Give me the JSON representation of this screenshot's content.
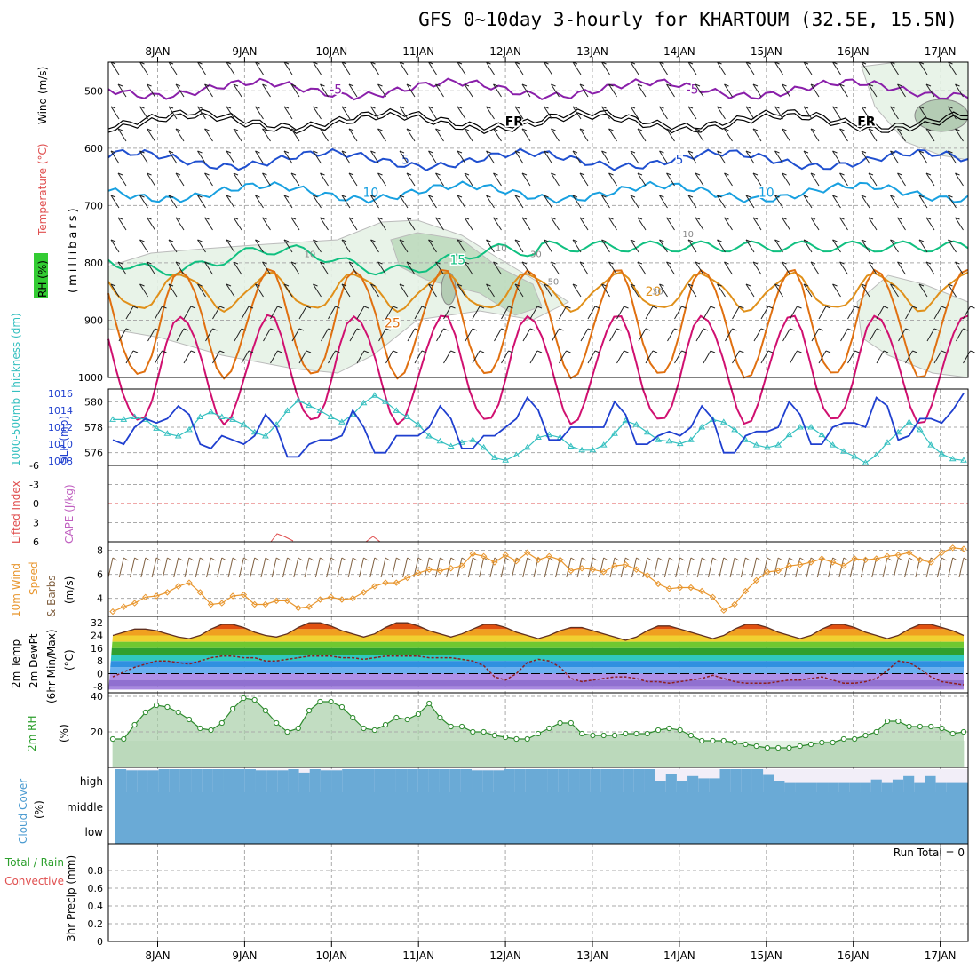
{
  "page": {
    "title": "GFS 0~10day 3-hourly for KHARTOUM (32.5E, 15.5N)"
  },
  "colors": {
    "grid": "#aaaaaa",
    "frame": "#000000",
    "slp": "#1f3fcf",
    "thickness": "#35c0c0",
    "wind_speed": "#e8962e",
    "barb": "#806040",
    "rh_line": "#2e8b2e",
    "rh_fill_dark": "#a8cfa8",
    "rh_fill_light": "#e6f2e6",
    "cloud": "#6aaad6",
    "cloud_clear": "#f2eef8",
    "cape": "#c060c0",
    "lifted_index": "#e02020"
  },
  "x_axis": {
    "top_labels": [
      "8JAN",
      "9JAN",
      "10JAN",
      "11JAN",
      "12JAN",
      "13JAN",
      "14JAN",
      "15JAN",
      "16JAN",
      "17JAN"
    ],
    "bottom_labels": [
      "8JAN",
      "9JAN",
      "10JAN",
      "11JAN",
      "12JAN",
      "13JAN",
      "14JAN",
      "15JAN",
      "16JAN",
      "17JAN"
    ]
  },
  "panels": {
    "upper": {
      "label_rh": "RH (%)",
      "label_temp": "Temperature (°C)",
      "label_wind": "Wind (m/s)",
      "label_mb": "(millibars)",
      "y_ticks": [
        "500",
        "600",
        "700",
        "800",
        "900",
        "1000"
      ],
      "y_values": [
        500,
        600,
        700,
        800,
        900,
        1000
      ],
      "ylim": [
        450,
        1000
      ],
      "isotherms": [
        {
          "value": -5,
          "color": "#8a1faa",
          "labels": [
            {
              "text": "-5",
              "day": 2.05
            },
            {
              "text": "-5",
              "day": 6.15
            }
          ]
        },
        {
          "value": 0,
          "color": "#000000",
          "double": true,
          "labels": [
            {
              "text": "FR",
              "day": 4.1
            },
            {
              "text": "FR",
              "day": 8.15
            }
          ]
        },
        {
          "value": 5,
          "color": "#1f4fcf",
          "labels": [
            {
              "text": "5",
              "day": 2.85
            },
            {
              "text": "5",
              "day": 6.0
            }
          ]
        },
        {
          "value": 10,
          "color": "#18a0e0",
          "labels": [
            {
              "text": "10",
              "day": 2.45
            },
            {
              "text": "10",
              "day": 7.0
            }
          ]
        },
        {
          "value": 15,
          "color": "#10c080",
          "labels": [
            {
              "text": "15",
              "day": 3.45
            }
          ]
        },
        {
          "value": 20,
          "color": "#e0901a",
          "labels": [
            {
              "text": "20",
              "day": 5.7
            }
          ]
        },
        {
          "value": 25,
          "color": "#e07010",
          "labels": [
            {
              "text": "25",
              "day": 2.7
            }
          ]
        },
        {
          "value": 30,
          "color": "#d01070",
          "labels": []
        }
      ],
      "rh_labels": [
        {
          "text": "10",
          "day": 1.75
        },
        {
          "text": "10",
          "day": 3.95
        },
        {
          "text": "10",
          "day": 6.1
        },
        {
          "text": "30",
          "day": 4.35
        },
        {
          "text": "50",
          "day": 4.55
        },
        {
          "text": "30",
          "day": 5.75
        }
      ]
    },
    "slp_thickness": {
      "label_thickness": "1000-500mb Thickness (dm)",
      "label_slp": "SLP (mb)",
      "left_ticks": [
        "580",
        "578",
        "576"
      ],
      "right_ticks": [
        "1016",
        "1014",
        "1012",
        "1010",
        "1008"
      ]
    },
    "li_cape": {
      "label_li": "Lifted Index",
      "label_cape": "CAPE (J/kg)",
      "y_ticks": [
        "-6",
        "-3",
        "0",
        "3",
        "6"
      ]
    },
    "wind10": {
      "label_a": "10m Wind",
      "label_b": "Speed",
      "label_c": "& Barbs",
      "label_unit": "(m/s)",
      "y_ticks": [
        "8",
        "6",
        "4"
      ]
    },
    "temp2m": {
      "label_a": "2m Temp",
      "label_b": "2m DewPt",
      "label_c": "(6hr Min/Max)",
      "label_unit": "(°C)",
      "y_ticks": [
        "32",
        "24",
        "16",
        "8",
        "0",
        "-8"
      ]
    },
    "rh2m": {
      "label_a": "2m RH",
      "label_unit": "(%)",
      "y_ticks": [
        "40",
        "20"
      ]
    },
    "cloud": {
      "label_a": "Cloud Cover",
      "label_unit": "(%)",
      "levels": [
        "high",
        "middle",
        "low"
      ]
    },
    "precip": {
      "label_a": "Total / Rain",
      "label_b": "Convective",
      "label_c": "3hr Precip (mm)",
      "run_total": "Run Total = 0",
      "y_ticks": [
        "0.8",
        "0.6",
        "0.4",
        "0.2",
        "0"
      ],
      "ylim": [
        0,
        1
      ]
    }
  },
  "chart_data": {
    "type": "line",
    "x": [
      "7.5JAN",
      "7.6JAN",
      "7.8JAN",
      "7.9JAN",
      "8.0JAN",
      "8.1JAN",
      "8.3JAN",
      "8.4JAN",
      "8.5JAN",
      "8.6JAN",
      "8.8JAN",
      "8.9JAN",
      "9.0JAN",
      "9.1JAN",
      "9.3JAN",
      "9.4JAN",
      "9.5JAN",
      "9.6JAN",
      "9.8JAN",
      "9.9JAN",
      "10.0JAN",
      "10.1JAN",
      "10.3JAN",
      "10.4JAN",
      "10.5JAN",
      "10.6JAN",
      "10.8JAN",
      "10.9JAN",
      "11.0JAN",
      "11.1JAN",
      "11.3JAN",
      "11.4JAN",
      "11.5JAN",
      "11.6JAN",
      "11.8JAN",
      "11.9JAN",
      "12.0JAN",
      "12.1JAN",
      "12.3JAN",
      "12.4JAN",
      "12.5JAN",
      "12.6JAN",
      "12.8JAN",
      "12.9JAN",
      "13.0JAN",
      "13.1JAN",
      "13.3JAN",
      "13.4JAN",
      "13.5JAN",
      "13.6JAN",
      "13.8JAN",
      "13.9JAN",
      "14.0JAN",
      "14.1JAN",
      "14.3JAN",
      "14.4JAN",
      "14.5JAN",
      "14.6JAN",
      "14.8JAN",
      "14.9JAN",
      "15.0JAN",
      "15.1JAN",
      "15.3JAN",
      "15.4JAN",
      "15.5JAN",
      "15.6JAN",
      "15.8JAN",
      "15.9JAN",
      "16.0JAN",
      "16.1JAN",
      "16.3JAN",
      "16.4JAN",
      "16.5JAN",
      "16.6JAN",
      "16.8JAN",
      "16.9JAN",
      "17.0JAN",
      "17.1JAN",
      "17.3JAN"
    ],
    "slp": [
      1010.5,
      1010,
      1012,
      1013,
      1012.5,
      1013,
      1014.5,
      1013.5,
      1010,
      1009.5,
      1011,
      1010.5,
      1010,
      1011,
      1013.5,
      1012,
      1008.5,
      1008.5,
      1010,
      1010.5,
      1010.5,
      1011,
      1014,
      1012,
      1009,
      1009,
      1011,
      1011,
      1011,
      1012,
      1014.5,
      1013,
      1009.5,
      1009.5,
      1011,
      1011,
      1012,
      1013,
      1015.5,
      1014,
      1010.5,
      1010.5,
      1012,
      1012,
      1012,
      1012,
      1015,
      1013.5,
      1010,
      1010,
      1011,
      1011.5,
      1011,
      1012,
      1014.5,
      1013,
      1009,
      1009,
      1011,
      1011.5,
      1011.5,
      1012,
      1015,
      1013.5,
      1010,
      1010,
      1012,
      1012.5,
      1012.5,
      1012,
      1015.5,
      1014.5,
      1010.5,
      1011,
      1013,
      1013,
      1012.5,
      1014,
      1016
    ],
    "thickness": [
      578.6,
      578.6,
      578.8,
      578.6,
      577.9,
      577.5,
      577.3,
      577.8,
      578.8,
      579.2,
      578.8,
      578.6,
      578.2,
      577.6,
      577.3,
      578.2,
      579.3,
      580.1,
      579.7,
      579.3,
      578.8,
      578.4,
      579.0,
      579.9,
      580.5,
      580.0,
      579.3,
      578.8,
      578.2,
      577.3,
      576.9,
      576.5,
      576.8,
      577.0,
      576.4,
      575.6,
      575.4,
      575.8,
      576.4,
      577.2,
      577.4,
      577.2,
      576.5,
      576.2,
      576.2,
      576.6,
      577.5,
      578.5,
      578.2,
      577.6,
      577.0,
      576.9,
      576.7,
      577.0,
      578.0,
      578.6,
      578.4,
      577.8,
      577.0,
      576.6,
      576.4,
      576.6,
      577.4,
      578.0,
      578.0,
      577.4,
      576.6,
      576.1,
      575.7,
      575.2,
      575.8,
      576.8,
      577.6,
      578.4,
      577.8,
      576.6,
      575.9,
      575.5,
      575.4
    ],
    "wind_speed_10m": [
      2.9,
      3.3,
      3.6,
      4.1,
      4.2,
      4.5,
      5.0,
      5.3,
      4.5,
      3.5,
      3.6,
      4.2,
      4.3,
      3.5,
      3.5,
      3.8,
      3.8,
      3.2,
      3.3,
      3.9,
      4.1,
      3.9,
      4.0,
      4.5,
      5.0,
      5.3,
      5.3,
      5.7,
      6.1,
      6.4,
      6.3,
      6.5,
      6.7,
      7.7,
      7.5,
      7.0,
      7.6,
      7.1,
      7.8,
      7.2,
      7.5,
      7.2,
      6.3,
      6.5,
      6.4,
      6.2,
      6.7,
      6.8,
      6.4,
      5.9,
      5.2,
      4.8,
      4.9,
      4.9,
      4.6,
      4.1,
      3.0,
      3.5,
      4.6,
      5.5,
      6.2,
      6.3,
      6.7,
      6.8,
      7.0,
      7.3,
      7.0,
      6.7,
      7.3,
      7.2,
      7.3,
      7.5,
      7.6,
      7.8,
      7.2,
      7.0,
      7.8,
      8.2,
      8.1
    ],
    "temp_2m": [
      24,
      26,
      28,
      28,
      27,
      25,
      23,
      22,
      24,
      28,
      31,
      31,
      29,
      26,
      24,
      23,
      25,
      29,
      32,
      32,
      30,
      27,
      25,
      23,
      25,
      29,
      32,
      32,
      30,
      27,
      25,
      23,
      25,
      28,
      31,
      31,
      29,
      26,
      24,
      22,
      24,
      27,
      29,
      29,
      27,
      25,
      23,
      21,
      23,
      27,
      30,
      30,
      28,
      26,
      24,
      22,
      24,
      28,
      31,
      31,
      29,
      26,
      24,
      22,
      24,
      28,
      31,
      31,
      29,
      26,
      24,
      22,
      24,
      28,
      31,
      31,
      29,
      27,
      24
    ],
    "dewpt_2m": [
      -2,
      1,
      4,
      6,
      8,
      8,
      7,
      6,
      8,
      10,
      11,
      11,
      10,
      10,
      8,
      8,
      9,
      10,
      11,
      11,
      11,
      10,
      10,
      9,
      10,
      11,
      11,
      11,
      11,
      10,
      10,
      10,
      9,
      8,
      5,
      -2,
      -4,
      0,
      7,
      9,
      8,
      4,
      -3,
      -5,
      -4,
      -3,
      -2,
      -2,
      -3,
      -5,
      -5,
      -6,
      -5,
      -4,
      -3,
      -1,
      -3,
      -5,
      -6,
      -6,
      -6,
      -5,
      -4,
      -4,
      -3,
      -2,
      -4,
      -6,
      -6,
      -5,
      -3,
      2,
      8,
      7,
      3,
      -2,
      -5,
      -6,
      -7
    ],
    "rh_2m": [
      16,
      16,
      24,
      31,
      35,
      34,
      31,
      27,
      22,
      21,
      25,
      33,
      39,
      38,
      32,
      25,
      20,
      22,
      32,
      37,
      37,
      34,
      28,
      22,
      21,
      24,
      28,
      27,
      30,
      36,
      28,
      23,
      23,
      20,
      20,
      18,
      17,
      16,
      16,
      19,
      22,
      25,
      25,
      19,
      18,
      18,
      18,
      19,
      19,
      19,
      21,
      22,
      21,
      18,
      15,
      15,
      15,
      14,
      13,
      12,
      11,
      11,
      11,
      12,
      13,
      14,
      14,
      16,
      16,
      18,
      20,
      26,
      26,
      23,
      23,
      23,
      22,
      19,
      20
    ],
    "cloud_high": [
      100,
      95,
      95,
      95,
      100,
      100,
      100,
      100,
      100,
      100,
      100,
      100,
      100,
      95,
      95,
      95,
      100,
      85,
      100,
      95,
      95,
      100,
      100,
      100,
      100,
      100,
      100,
      100,
      100,
      100,
      100,
      100,
      100,
      95,
      95,
      95,
      100,
      100,
      100,
      100,
      100,
      100,
      100,
      100,
      100,
      100,
      100,
      100,
      100,
      100,
      50,
      80,
      50,
      70,
      60,
      60,
      100,
      100,
      100,
      100,
      75,
      50,
      40,
      40,
      40,
      40,
      40,
      40,
      40,
      40,
      55,
      40,
      55,
      70,
      40,
      70,
      40,
      40,
      40
    ],
    "precip_3hr": [
      0,
      0,
      0,
      0,
      0,
      0,
      0,
      0,
      0,
      0,
      0,
      0,
      0,
      0,
      0,
      0,
      0,
      0,
      0,
      0,
      0,
      0,
      0,
      0,
      0,
      0,
      0,
      0,
      0,
      0,
      0,
      0,
      0,
      0,
      0,
      0,
      0,
      0,
      0,
      0,
      0,
      0,
      0,
      0,
      0,
      0,
      0,
      0,
      0,
      0,
      0,
      0,
      0,
      0,
      0,
      0,
      0,
      0,
      0,
      0,
      0,
      0,
      0,
      0,
      0,
      0,
      0,
      0,
      0,
      0,
      0,
      0,
      0,
      0,
      0,
      0,
      0,
      0,
      0
    ]
  }
}
